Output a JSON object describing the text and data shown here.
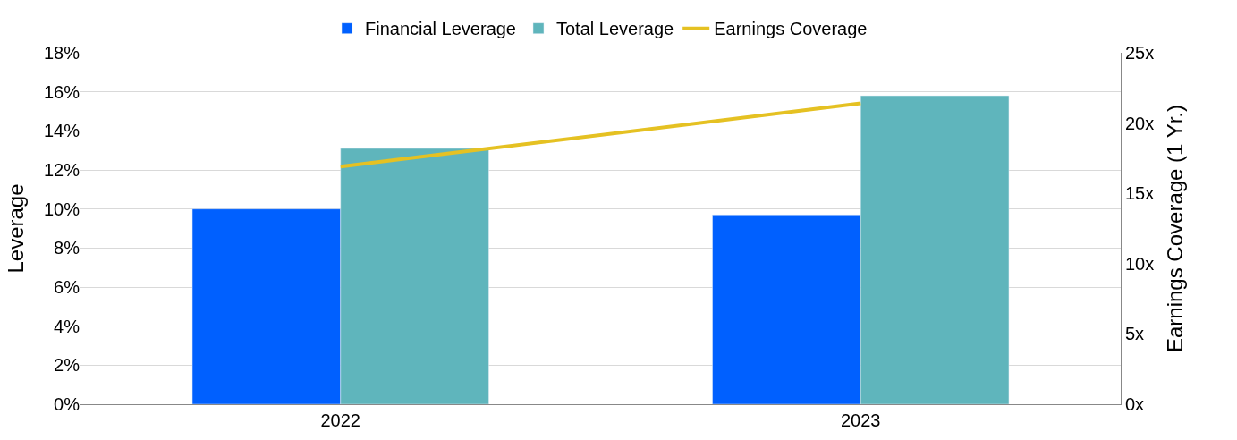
{
  "chart_data": {
    "type": "bar",
    "categories": [
      "2022",
      "2023"
    ],
    "ylabel": "Leverage",
    "y2label": "Earnings Coverage (1 Yr.)",
    "series": [
      {
        "name": "Financial Leverage",
        "color": "#0060ff",
        "values": [
          10.0,
          9.7
        ]
      },
      {
        "name": "Total Leverage",
        "color": "#5fb5bc",
        "values": [
          13.1,
          15.8
        ]
      },
      {
        "name": "Earnings Coverage",
        "type": "line",
        "axis": "y2",
        "color": "#e5c122",
        "values": [
          16.9,
          21.4
        ]
      }
    ],
    "ylim": [
      0,
      18
    ],
    "yticks": [
      {
        "value": 0,
        "label": "0%"
      },
      {
        "value": 2,
        "label": "2%"
      },
      {
        "value": 4,
        "label": "4%"
      },
      {
        "value": 6,
        "label": "6%"
      },
      {
        "value": 8,
        "label": "8%"
      },
      {
        "value": 10,
        "label": "10%"
      },
      {
        "value": 12,
        "label": "12%"
      },
      {
        "value": 14,
        "label": "14%"
      },
      {
        "value": 16,
        "label": "16%"
      },
      {
        "value": 18,
        "label": "18%"
      }
    ],
    "y2lim": [
      0,
      25
    ],
    "y2ticks": [
      {
        "value": 0,
        "label": "0x"
      },
      {
        "value": 5,
        "label": "5x"
      },
      {
        "value": 10,
        "label": "10x"
      },
      {
        "value": 15,
        "label": "15x"
      },
      {
        "value": 20,
        "label": "20x"
      },
      {
        "value": 25,
        "label": "25x"
      }
    ],
    "grid": "y",
    "legend": "top",
    "marker": "none",
    "line_style": "solid"
  }
}
